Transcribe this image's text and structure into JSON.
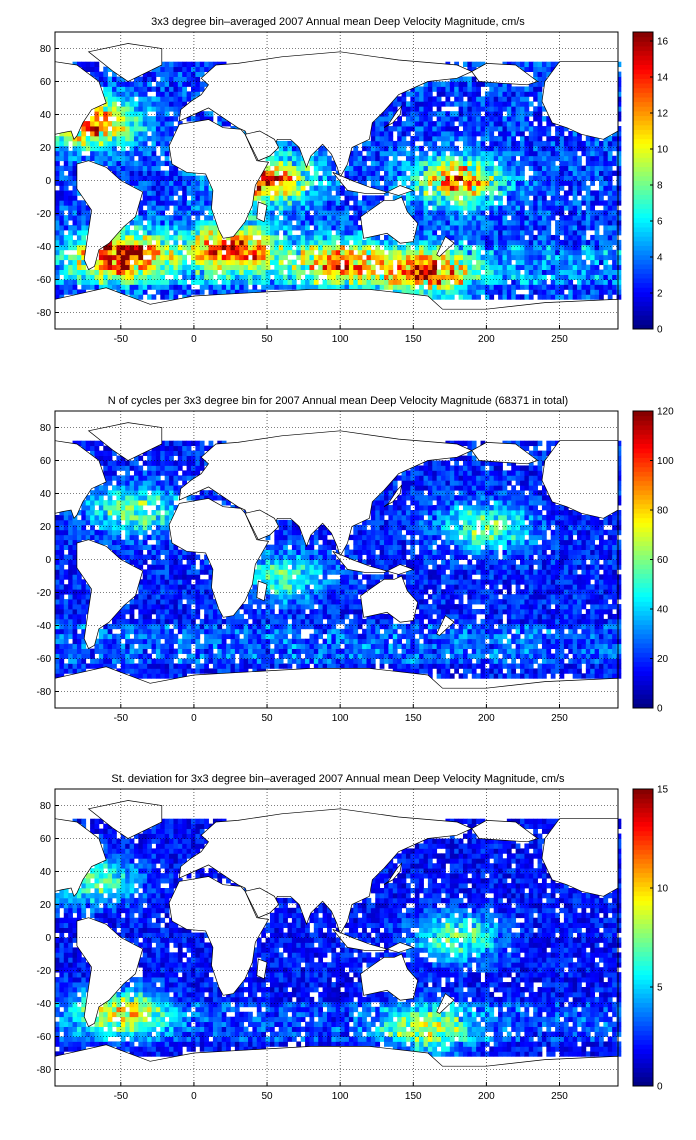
{
  "chart_data": [
    {
      "type": "heatmap",
      "title": "3x3 degree bin–averaged 2007 Annual mean Deep Velocity Magnitude, cm/s",
      "xlabel": "",
      "ylabel": "",
      "xlim": [
        -95,
        290
      ],
      "ylim": [
        -90,
        90
      ],
      "x_ticks": [
        -50,
        0,
        50,
        100,
        150,
        200,
        250
      ],
      "y_ticks": [
        80,
        60,
        40,
        20,
        0,
        -20,
        -40,
        -60,
        -80
      ],
      "grid": true,
      "colorbar": {
        "min": 0,
        "max": 16.5,
        "ticks": [
          0,
          2,
          4,
          6,
          8,
          10,
          12,
          14,
          16
        ]
      },
      "colormap": "jet",
      "hotspots": [
        {
          "lon": -50,
          "lat": -45,
          "value": 14
        },
        {
          "lon": -70,
          "lat": 35,
          "value": 12
        },
        {
          "lon": 25,
          "lat": -40,
          "value": 13
        },
        {
          "lon": 160,
          "lat": -55,
          "value": 12
        },
        {
          "lon": 180,
          "lat": 0,
          "value": 11
        },
        {
          "lon": 50,
          "lat": 0,
          "value": 12
        },
        {
          "lon": 100,
          "lat": -50,
          "value": 10
        }
      ],
      "base_value": 3
    },
    {
      "type": "heatmap",
      "title": "N of cycles per 3x3 degree bin for 2007 Annual mean Deep Velocity Magnitude (68371 in total)",
      "xlabel": "",
      "ylabel": "",
      "xlim": [
        -95,
        290
      ],
      "ylim": [
        -90,
        90
      ],
      "x_ticks": [
        -50,
        0,
        50,
        100,
        150,
        200,
        250
      ],
      "y_ticks": [
        80,
        60,
        40,
        20,
        0,
        -20,
        -40,
        -60,
        -80
      ],
      "grid": true,
      "colorbar": {
        "min": 0,
        "max": 120,
        "ticks": [
          0,
          20,
          40,
          60,
          80,
          100,
          120
        ]
      },
      "colormap": "jet",
      "hotspots": [
        {
          "lon": -40,
          "lat": 30,
          "value": 50
        },
        {
          "lon": 200,
          "lat": 20,
          "value": 45
        },
        {
          "lon": 60,
          "lat": -10,
          "value": 40
        }
      ],
      "base_value": 18
    },
    {
      "type": "heatmap",
      "title": "St. deviation for 3x3 degree bin–averaged 2007 Annual mean Deep Velocity Magnitude, cm/s",
      "xlabel": "",
      "ylabel": "",
      "xlim": [
        -95,
        290
      ],
      "ylim": [
        -90,
        90
      ],
      "x_ticks": [
        -50,
        0,
        50,
        100,
        150,
        200,
        250
      ],
      "y_ticks": [
        80,
        60,
        40,
        20,
        0,
        -20,
        -40,
        -60,
        -80
      ],
      "grid": true,
      "colorbar": {
        "min": 0,
        "max": 15,
        "ticks": [
          0,
          5,
          10,
          15
        ]
      },
      "colormap": "jet",
      "hotspots": [
        {
          "lon": -50,
          "lat": -45,
          "value": 8
        },
        {
          "lon": 160,
          "lat": -55,
          "value": 7
        },
        {
          "lon": 180,
          "lat": 0,
          "value": 6
        },
        {
          "lon": -70,
          "lat": 35,
          "value": 6
        }
      ],
      "base_value": 2
    }
  ]
}
